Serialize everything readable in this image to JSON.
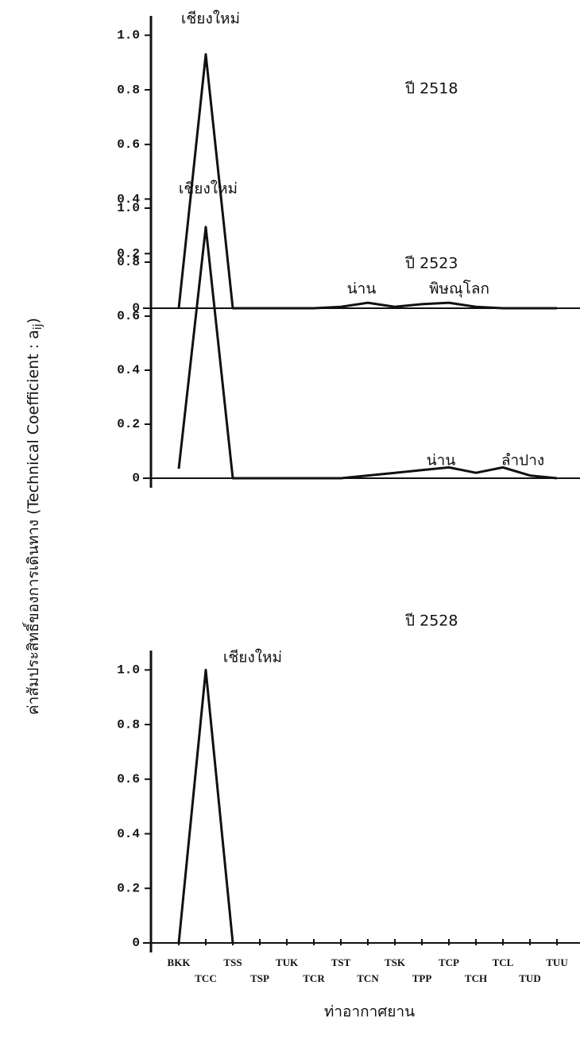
{
  "y_label": {
    "text": "ค่าสัมประสิทธิ์ของการเดินทาง (Technical Coefficient : a",
    "subscript": "ij",
    "close": ")"
  },
  "x_label": "ท่าอากาศยาน",
  "chart_data": [
    {
      "type": "line",
      "year_label": "ปี 2518",
      "series": [
        {
          "color": "#111111",
          "values": [
            0,
            0.93,
            0,
            0,
            0,
            0,
            0.005,
            0.02,
            0.005,
            0.015,
            0.02,
            0.005,
            0,
            0,
            0
          ]
        }
      ],
      "annotations": [
        "เชียงใหม่",
        "น่าน",
        "พิษณุโลก"
      ],
      "ylim": [
        0,
        1.1
      ],
      "yticks": [
        0,
        0.2,
        0.4,
        0.6,
        0.8,
        {
          "value": 1,
          "label": "1.0"
        }
      ]
    },
    {
      "type": "line",
      "year_label": "ปี 2523",
      "series": [
        {
          "color": "#111111",
          "values": [
            0.035,
            0.93,
            0,
            0,
            0,
            0,
            0,
            0.01,
            0.02,
            0.03,
            0.04,
            0.02,
            0.04,
            0.01,
            0
          ]
        }
      ],
      "annotations": [
        "เชียงใหม่",
        "น่าน",
        "ลำปาง"
      ],
      "ylim": [
        0,
        1.1
      ],
      "yticks": [
        0,
        0.2,
        0.4,
        0.6,
        0.8,
        {
          "value": 1,
          "label": "1.0"
        }
      ]
    },
    {
      "type": "line",
      "year_label": "ปี 2528",
      "categories": [
        "BKK",
        "TCC",
        "TSS",
        "TSP",
        "TUK",
        "TCR",
        "TST",
        "TCN",
        "TSK",
        "TPP",
        "TCP",
        "TCH",
        "TCL",
        "TUD",
        "TUU"
      ],
      "series": [
        {
          "color": "#111111",
          "values": [
            0,
            1,
            0,
            null,
            null,
            null,
            null,
            null,
            null,
            null,
            null,
            null,
            null,
            null,
            null
          ]
        }
      ],
      "annotations": [
        "เชียงใหม่"
      ],
      "ylim": [
        0,
        1.1
      ],
      "yticks": [
        0,
        0.2,
        0.4,
        0.6,
        0.8,
        {
          "value": 1,
          "label": "1.0"
        }
      ]
    }
  ]
}
